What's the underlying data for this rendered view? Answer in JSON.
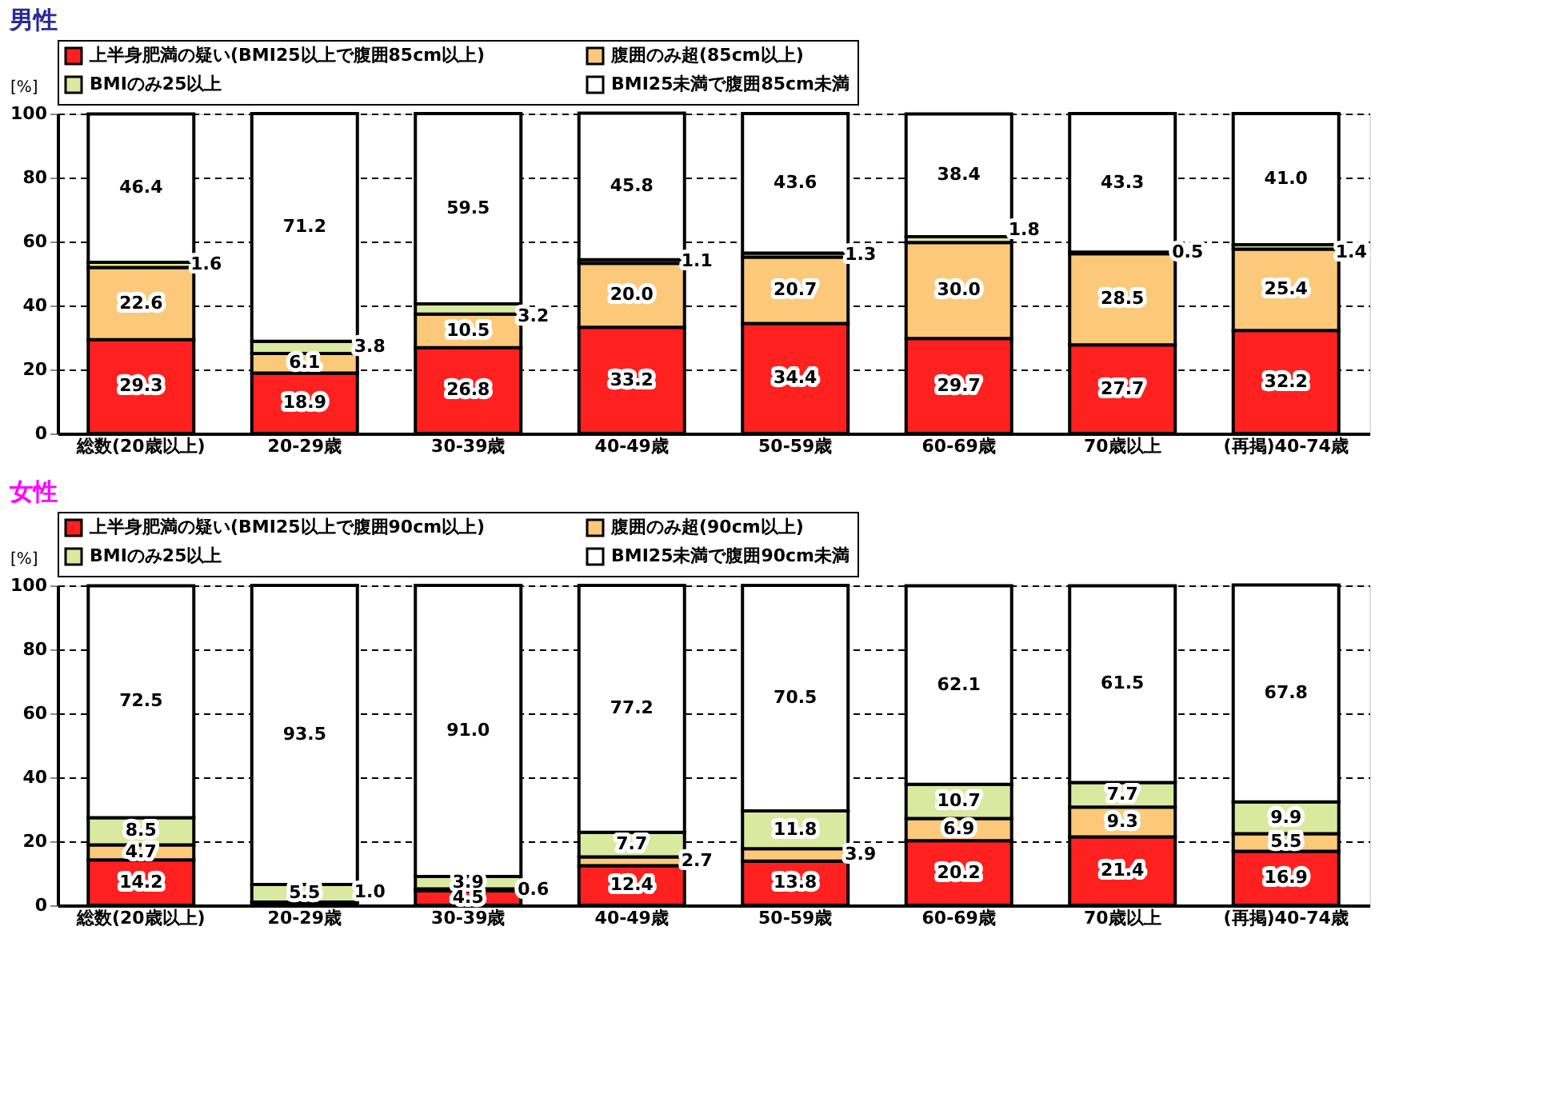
{
  "chart_data": [
    {
      "type": "bar",
      "title": "男性",
      "ylabel": "[%]",
      "stacked": true,
      "grid": "y",
      "legend": "top",
      "ylim": [
        0,
        100
      ],
      "yticks": [
        0,
        20,
        40,
        60,
        80,
        100
      ],
      "categories": [
        "総数(20歳以上)",
        "20-29歳",
        "30-39歳",
        "40-49歳",
        "50-59歳",
        "60-69歳",
        "70歳以上",
        "(再掲)40-74歳"
      ],
      "series": [
        {
          "name": "上半身肥満の疑い(BMI25以上で腹囲85cm以上)",
          "color": "#ff2020",
          "values": [
            29.3,
            18.9,
            26.8,
            33.2,
            34.4,
            29.7,
            27.7,
            32.2
          ],
          "value_labels": [
            "29.3",
            "18.9",
            "26.8",
            "33.2",
            "34.4",
            "29.7",
            "27.7",
            "32.2"
          ]
        },
        {
          "name": "腹囲のみ超(85cm以上)",
          "color": "#fcc97a",
          "values": [
            22.6,
            6.1,
            10.5,
            20.0,
            20.7,
            30.0,
            28.5,
            25.4
          ],
          "value_labels": [
            "22.6",
            "6.1",
            "10.5",
            "20.0",
            "20.7",
            "30.0",
            "28.5",
            "25.4"
          ]
        },
        {
          "name": "BMIのみ25以上",
          "color": "#d9eaa0",
          "values": [
            1.6,
            3.8,
            3.2,
            1.1,
            1.3,
            1.8,
            0.5,
            1.4
          ],
          "value_labels": [
            "1.6",
            "3.8",
            "3.2",
            "1.1",
            "1.3",
            "1.8",
            "0.5",
            "1.4"
          ]
        },
        {
          "name": "BMI25未満で腹囲85cm未満",
          "color": "#ffffff",
          "values": [
            46.4,
            71.2,
            59.5,
            45.8,
            43.6,
            38.4,
            43.3,
            41.0
          ],
          "value_labels": [
            "46.4",
            "71.2",
            "59.5",
            "45.8",
            "43.6",
            "38.4",
            "43.3",
            "41.0"
          ]
        }
      ]
    },
    {
      "type": "bar",
      "title": "女性",
      "ylabel": "[%]",
      "stacked": true,
      "grid": "y",
      "legend": "top",
      "ylim": [
        0,
        100
      ],
      "yticks": [
        0,
        20,
        40,
        60,
        80,
        100
      ],
      "categories": [
        "総数(20歳以上)",
        "20-29歳",
        "30-39歳",
        "40-49歳",
        "50-59歳",
        "60-69歳",
        "70歳以上",
        "(再掲)40-74歳"
      ],
      "series": [
        {
          "name": "上半身肥満の疑い(BMI25以上で腹囲90cm以上)",
          "color": "#ff2020",
          "values": [
            14.2,
            1.0,
            4.5,
            12.4,
            13.8,
            20.2,
            21.4,
            16.9
          ],
          "value_labels": [
            "14.2",
            "1.0",
            "4.5",
            "12.4",
            "13.8",
            "20.2",
            "21.4",
            "16.9"
          ]
        },
        {
          "name": "腹囲のみ超(90cm以上)",
          "color": "#fcc97a",
          "values": [
            4.7,
            null,
            0.6,
            2.7,
            3.9,
            6.9,
            9.3,
            5.5
          ],
          "value_labels": [
            "4.7",
            null,
            "0.6",
            "2.7",
            "3.9",
            "6.9",
            "9.3",
            "5.5"
          ]
        },
        {
          "name": "BMIのみ25以上",
          "color": "#d9eaa0",
          "values": [
            8.5,
            5.5,
            3.9,
            7.7,
            11.8,
            10.7,
            7.7,
            9.9
          ],
          "value_labels": [
            "8.5",
            "5.5",
            "3.9",
            "7.7",
            "11.8",
            "10.7",
            "7.7",
            "9.9"
          ]
        },
        {
          "name": "BMI25未満で腹囲90cm未満",
          "color": "#ffffff",
          "values": [
            72.5,
            93.5,
            91.0,
            77.2,
            70.5,
            62.1,
            61.5,
            67.8
          ],
          "value_labels": [
            "72.5",
            "93.5",
            "91.0",
            "77.2",
            "70.5",
            "62.1",
            "61.5",
            "67.8"
          ]
        }
      ]
    }
  ]
}
